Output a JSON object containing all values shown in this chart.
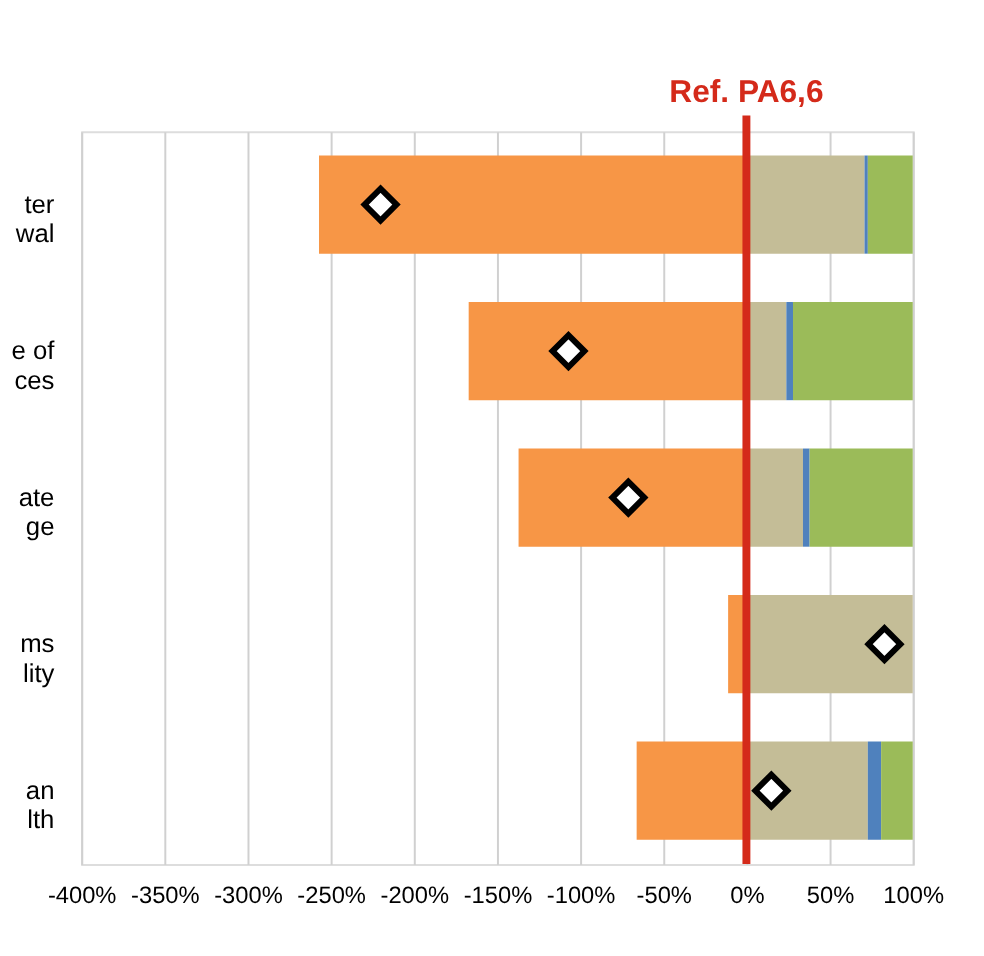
{
  "chart_data": {
    "type": "bar",
    "orientation": "horizontal",
    "stacked": true,
    "categories": [
      "ter\nwal",
      "e of\nces",
      "ate\nge",
      "ms\nlity",
      "an\nlth"
    ],
    "series": [
      {
        "color": "#f79646",
        "values": [
          -257,
          -167,
          -137,
          -11,
          -66
        ]
      },
      {
        "color": "#c4bd97",
        "values": [
          71,
          24,
          34,
          100,
          73
        ]
      },
      {
        "color": "#4f81bd",
        "values": [
          2,
          4,
          4,
          null,
          8
        ]
      },
      {
        "color": "#9bbb59",
        "values": [
          27,
          72,
          62,
          null,
          19
        ]
      },
      {
        "type": "scatter",
        "marker": "diamond",
        "color": "#ffffff",
        "x": [
          "ter\nwal",
          "e of\nces",
          "ate\nge",
          "ms\nlity",
          "an\nlth"
        ],
        "values": [
          -220,
          -107,
          -71,
          83,
          15
        ]
      }
    ],
    "xlim": [
      -400,
      100
    ],
    "xticks": [
      {
        "value": -400,
        "label": "-400%"
      },
      {
        "value": -350,
        "label": "-350%"
      },
      {
        "value": -300,
        "label": "-300%"
      },
      {
        "value": -250,
        "label": "-250%"
      },
      {
        "value": -200,
        "label": "-200%"
      },
      {
        "value": -150,
        "label": "-150%"
      },
      {
        "value": -100,
        "label": "-100%"
      },
      {
        "value": -50,
        "label": "-50%"
      },
      {
        "value": 0,
        "label": "0%"
      },
      {
        "value": 50,
        "label": "50%"
      },
      {
        "value": 100,
        "label": "100%"
      }
    ],
    "ref_lines": [
      {
        "axis": "x",
        "value": 0,
        "label": "Ref. PA6,6",
        "color": "#d42a1a"
      }
    ],
    "grid": "x"
  }
}
